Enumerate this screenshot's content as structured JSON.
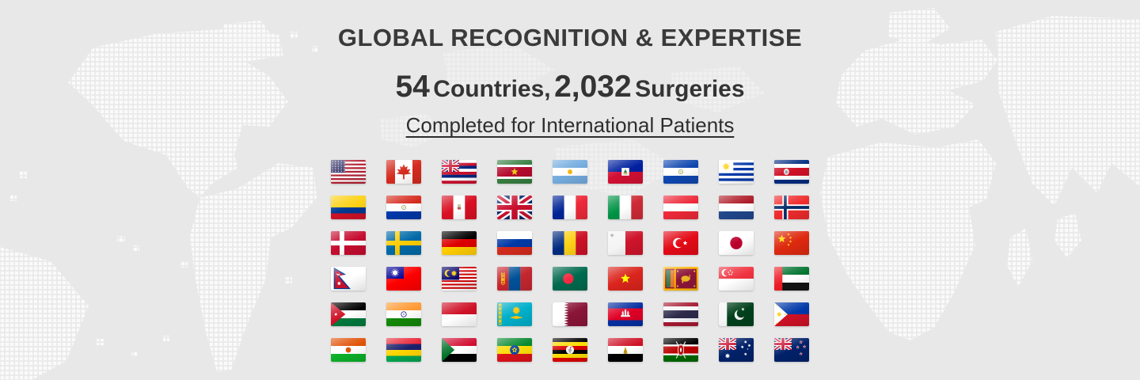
{
  "header": {
    "title": "GLOBAL RECOGNITION & EXPERTISE",
    "stats": {
      "countries_count": "54",
      "countries_label": "Countries,",
      "surgeries_count": "2,032",
      "surgeries_label": "Surgeries"
    },
    "subtitle_link": "Completed for International Patients"
  },
  "colors": {
    "background": "#e8e8e8",
    "map_dots": "#fafafa",
    "heading_text": "#3a3a3a",
    "link_text": "#2e2e2e"
  },
  "flags_grid": {
    "columns": 9,
    "rows": 6,
    "flags": [
      {
        "id": "us",
        "name": "United States"
      },
      {
        "id": "ca",
        "name": "Canada"
      },
      {
        "id": "hi",
        "name": "Hawaii"
      },
      {
        "id": "sr",
        "name": "Suriname"
      },
      {
        "id": "ar",
        "name": "Argentina"
      },
      {
        "id": "ht",
        "name": "Haiti"
      },
      {
        "id": "sv",
        "name": "El Salvador"
      },
      {
        "id": "uy",
        "name": "Uruguay"
      },
      {
        "id": "cr",
        "name": "Costa Rica"
      },
      {
        "id": "co",
        "name": "Colombia"
      },
      {
        "id": "py",
        "name": "Paraguay"
      },
      {
        "id": "pe",
        "name": "Peru"
      },
      {
        "id": "gb",
        "name": "United Kingdom"
      },
      {
        "id": "fr",
        "name": "France"
      },
      {
        "id": "it",
        "name": "Italy"
      },
      {
        "id": "at",
        "name": "Austria"
      },
      {
        "id": "nl",
        "name": "Netherlands"
      },
      {
        "id": "no",
        "name": "Norway"
      },
      {
        "id": "dk",
        "name": "Denmark"
      },
      {
        "id": "se",
        "name": "Sweden"
      },
      {
        "id": "de",
        "name": "Germany"
      },
      {
        "id": "ru",
        "name": "Russia"
      },
      {
        "id": "ro",
        "name": "Romania"
      },
      {
        "id": "mt",
        "name": "Malta"
      },
      {
        "id": "tr",
        "name": "Turkey"
      },
      {
        "id": "jp",
        "name": "Japan"
      },
      {
        "id": "cn",
        "name": "China"
      },
      {
        "id": "np",
        "name": "Nepal"
      },
      {
        "id": "tw",
        "name": "Taiwan"
      },
      {
        "id": "my",
        "name": "Malaysia"
      },
      {
        "id": "mn",
        "name": "Mongolia"
      },
      {
        "id": "bd",
        "name": "Bangladesh"
      },
      {
        "id": "vn",
        "name": "Vietnam"
      },
      {
        "id": "lk",
        "name": "Sri Lanka"
      },
      {
        "id": "sg",
        "name": "Singapore"
      },
      {
        "id": "ae",
        "name": "United Arab Emirates"
      },
      {
        "id": "jo",
        "name": "Jordan"
      },
      {
        "id": "in",
        "name": "India"
      },
      {
        "id": "id",
        "name": "Indonesia"
      },
      {
        "id": "kz",
        "name": "Kazakhstan"
      },
      {
        "id": "qa",
        "name": "Qatar"
      },
      {
        "id": "kh",
        "name": "Cambodia"
      },
      {
        "id": "th",
        "name": "Thailand"
      },
      {
        "id": "pk",
        "name": "Pakistan"
      },
      {
        "id": "ph",
        "name": "Philippines"
      },
      {
        "id": "ne",
        "name": "Niger"
      },
      {
        "id": "mu",
        "name": "Mauritius"
      },
      {
        "id": "sd",
        "name": "Sudan"
      },
      {
        "id": "et",
        "name": "Ethiopia"
      },
      {
        "id": "ug",
        "name": "Uganda"
      },
      {
        "id": "eg",
        "name": "Egypt"
      },
      {
        "id": "ke",
        "name": "Kenya"
      },
      {
        "id": "au",
        "name": "Australia"
      },
      {
        "id": "nz",
        "name": "New Zealand"
      }
    ]
  }
}
